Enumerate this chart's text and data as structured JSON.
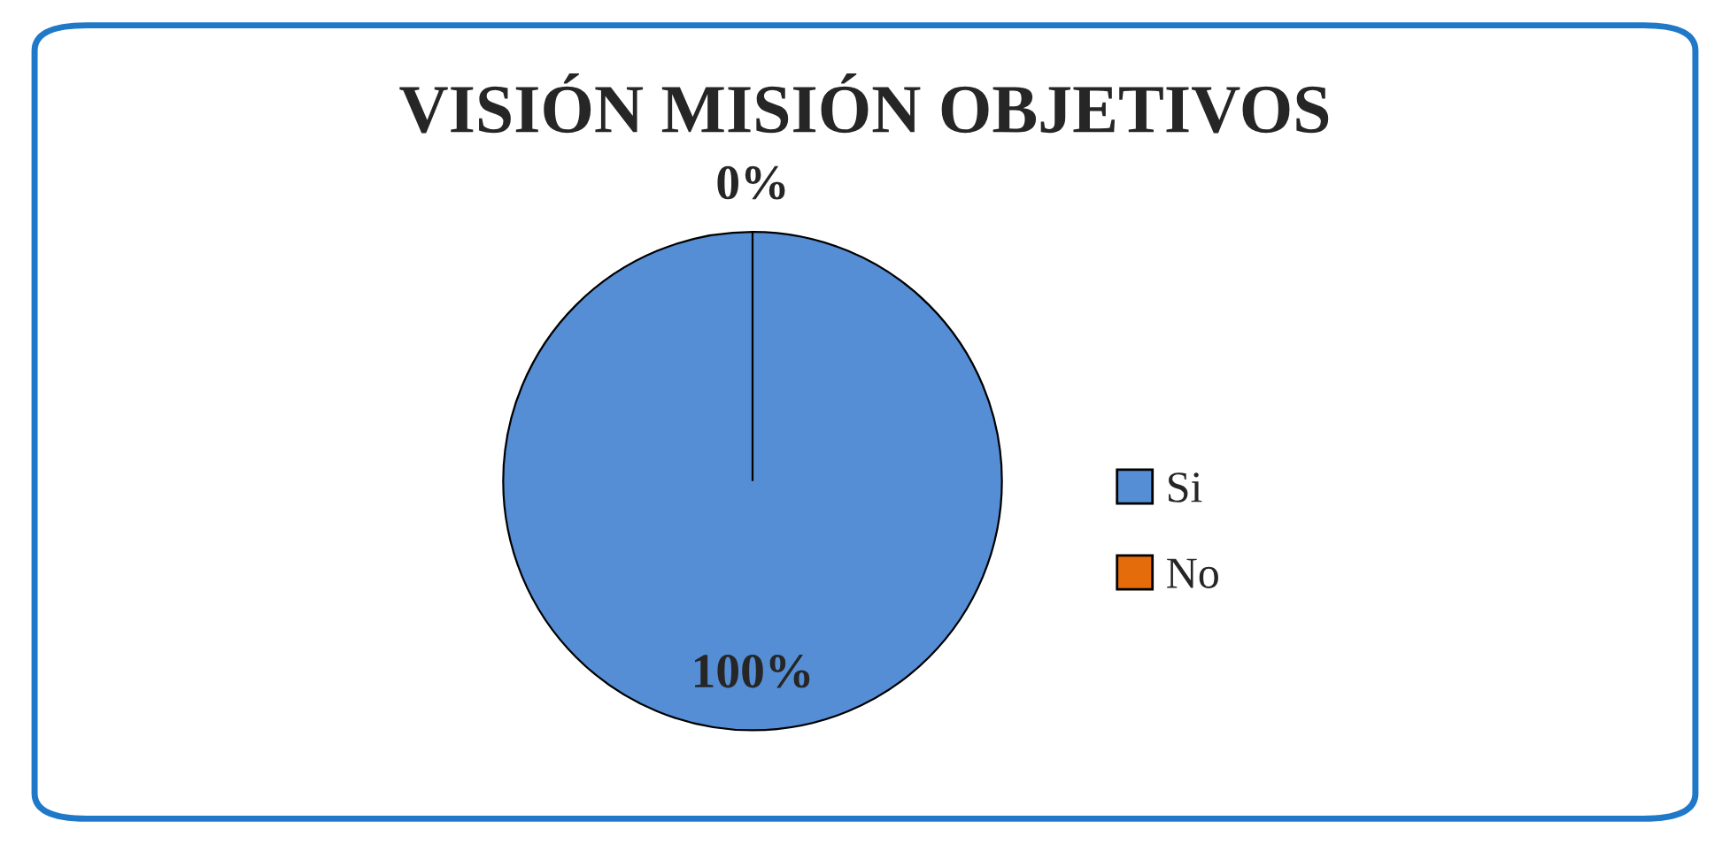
{
  "chart_data": {
    "type": "pie",
    "title": "VISIÓN MISIÓN OBJETIVOS",
    "categories": [
      "Si",
      "No"
    ],
    "values": [
      100,
      0
    ],
    "colors": [
      "#558ed5",
      "#e46c0a"
    ],
    "value_labels": [
      "100%",
      "0%"
    ],
    "legend": "right"
  }
}
